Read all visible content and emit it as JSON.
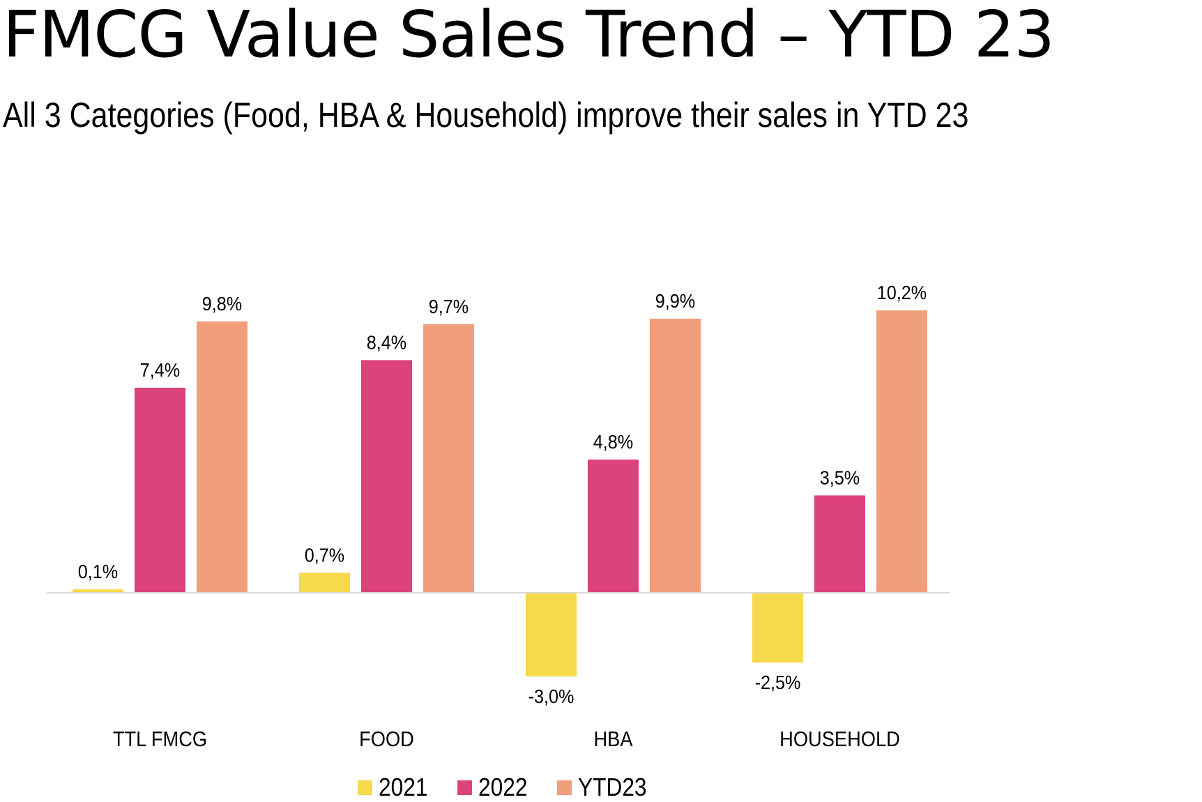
{
  "header": {
    "title": "FMCG Value Sales Trend – YTD 23",
    "subtitle": "All 3 Categories (Food, HBA & Household) improve their sales in YTD 23"
  },
  "chart_data": {
    "type": "bar",
    "title": "FMCG Value Sales Trend – YTD 23",
    "subtitle": "All 3 Categories (Food, HBA & Household) improve their sales in YTD 23",
    "xlabel": "",
    "ylabel": "",
    "categories": [
      "TTL FMCG",
      "FOOD",
      "HBA",
      "HOUSEHOLD"
    ],
    "series": [
      {
        "name": "2021",
        "color": "#F7D94C",
        "values": [
          0.1,
          0.7,
          -3.0,
          -2.5
        ],
        "labels": [
          "0,1%",
          "0,7%",
          "-3,0%",
          "-2,5%"
        ]
      },
      {
        "name": "2022",
        "color": "#DC427B",
        "values": [
          7.4,
          8.4,
          4.8,
          3.5
        ],
        "labels": [
          "7,4%",
          "8,4%",
          "4,8%",
          "3,5%"
        ]
      },
      {
        "name": "YTD23",
        "color": "#F09E7C",
        "values": [
          9.8,
          9.7,
          9.9,
          10.2
        ],
        "labels": [
          "9,8%",
          "9,7%",
          "9,9%",
          "10,2%"
        ]
      }
    ],
    "unit": "%",
    "grid": false,
    "baseline_color": "#D9D9D9",
    "legend_position": "bottom-center",
    "data_labels": true
  }
}
